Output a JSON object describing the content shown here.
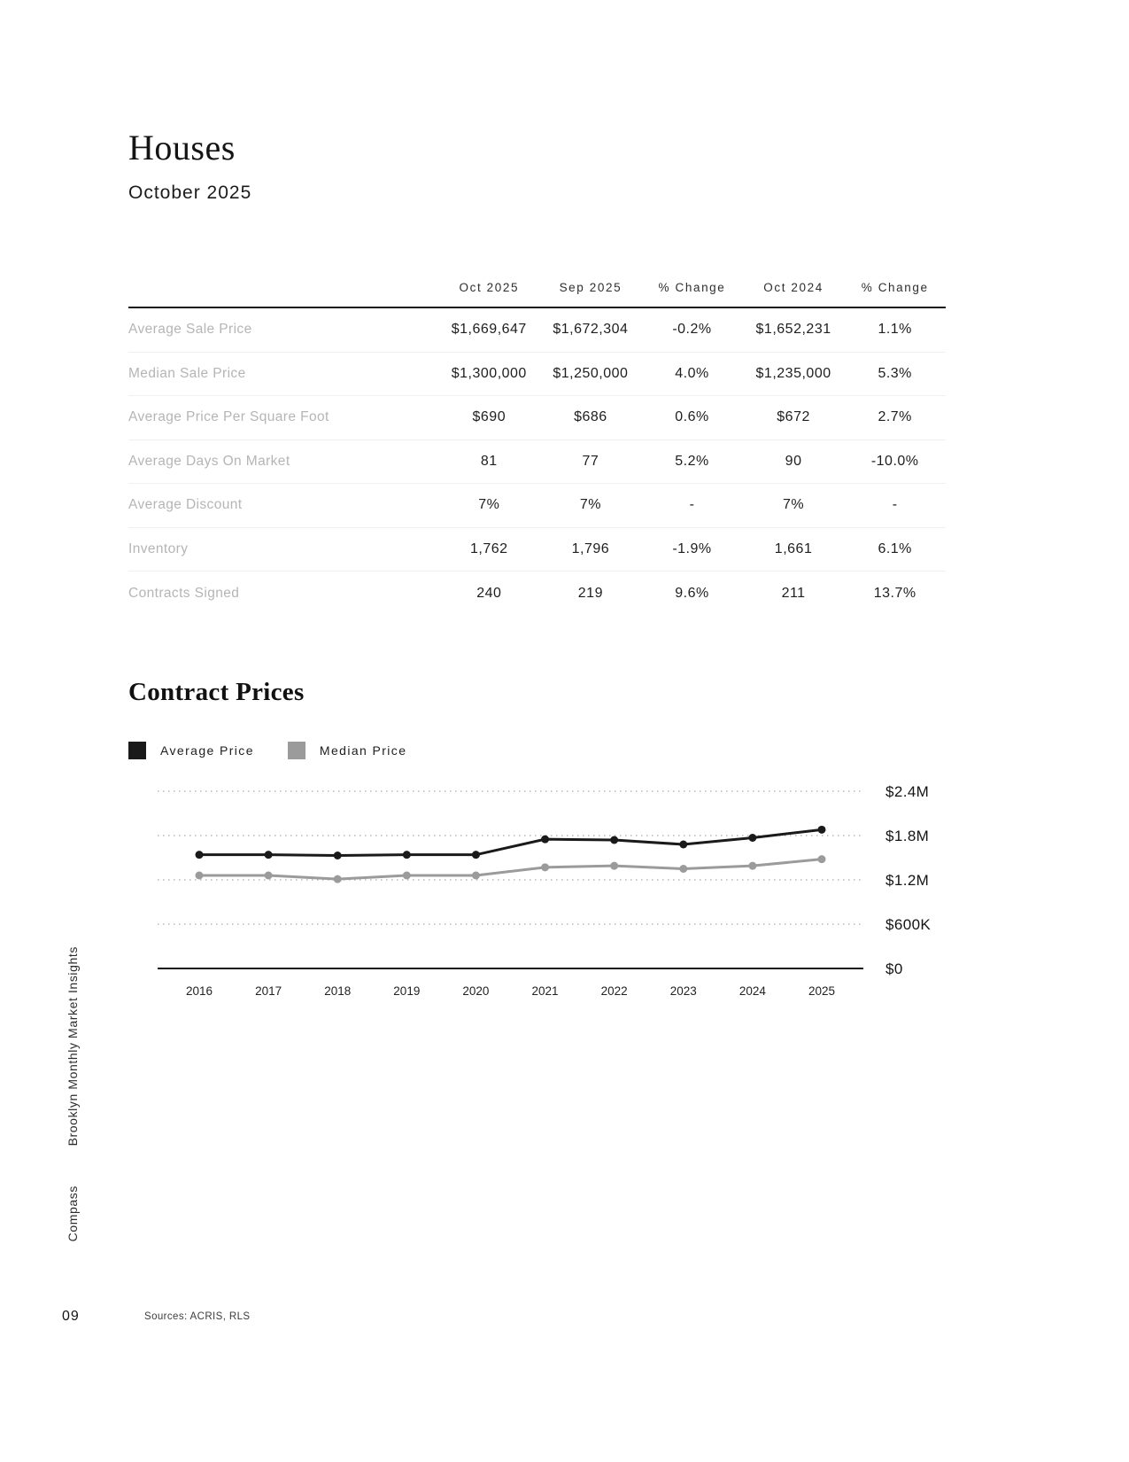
{
  "page": {
    "title": "Houses",
    "subtitle": "October 2025",
    "page_number": "09",
    "sources": "Sources: ACRIS, RLS",
    "sidebar_top": "Brooklyn Monthly Market Insights",
    "sidebar_bottom": "Compass"
  },
  "table": {
    "columns": [
      "Oct 2025",
      "Sep 2025",
      "% Change",
      "Oct 2024",
      "% Change"
    ],
    "rows": [
      {
        "label": "Average Sale Price",
        "values": [
          "$1,669,647",
          "$1,672,304",
          "-0.2%",
          "$1,652,231",
          "1.1%"
        ]
      },
      {
        "label": "Median Sale Price",
        "values": [
          "$1,300,000",
          "$1,250,000",
          "4.0%",
          "$1,235,000",
          "5.3%"
        ]
      },
      {
        "label": "Average Price Per Square Foot",
        "values": [
          "$690",
          "$686",
          "0.6%",
          "$672",
          "2.7%"
        ]
      },
      {
        "label": "Average Days On Market",
        "values": [
          "81",
          "77",
          "5.2%",
          "90",
          "-10.0%"
        ]
      },
      {
        "label": "Average Discount",
        "values": [
          "7%",
          "7%",
          "-",
          "7%",
          "-"
        ]
      },
      {
        "label": "Inventory",
        "values": [
          "1,762",
          "1,796",
          "-1.9%",
          "1,661",
          "6.1%"
        ]
      },
      {
        "label": "Contracts Signed",
        "values": [
          "240",
          "219",
          "9.6%",
          "211",
          "13.7%"
        ]
      }
    ]
  },
  "chart_section": {
    "title": "Contract Prices",
    "legend": [
      {
        "label": "Average Price",
        "color": "#1a1a1a"
      },
      {
        "label": "Median Price",
        "color": "#9b9b9b"
      }
    ]
  },
  "chart_data": {
    "type": "line",
    "title": "Contract Prices",
    "x": [
      "2016",
      "2017",
      "2018",
      "2019",
      "2020",
      "2021",
      "2022",
      "2023",
      "2024",
      "2025"
    ],
    "series": [
      {
        "name": "Average Price",
        "color": "#1a1a1a",
        "values": [
          1540000,
          1540000,
          1530000,
          1540000,
          1540000,
          1750000,
          1740000,
          1680000,
          1770000,
          1880000
        ]
      },
      {
        "name": "Median Price",
        "color": "#9b9b9b",
        "values": [
          1260000,
          1260000,
          1210000,
          1260000,
          1260000,
          1370000,
          1390000,
          1350000,
          1390000,
          1480000
        ]
      }
    ],
    "ylim": [
      0,
      2400000
    ],
    "yticks": [
      0,
      600000,
      1200000,
      1800000,
      2400000
    ],
    "ytick_labels": [
      "$0",
      "$600K",
      "$1.2M",
      "$1.8M",
      "$2.4M"
    ],
    "grid": "horizontal-dotted",
    "legend_position": "top-left"
  }
}
